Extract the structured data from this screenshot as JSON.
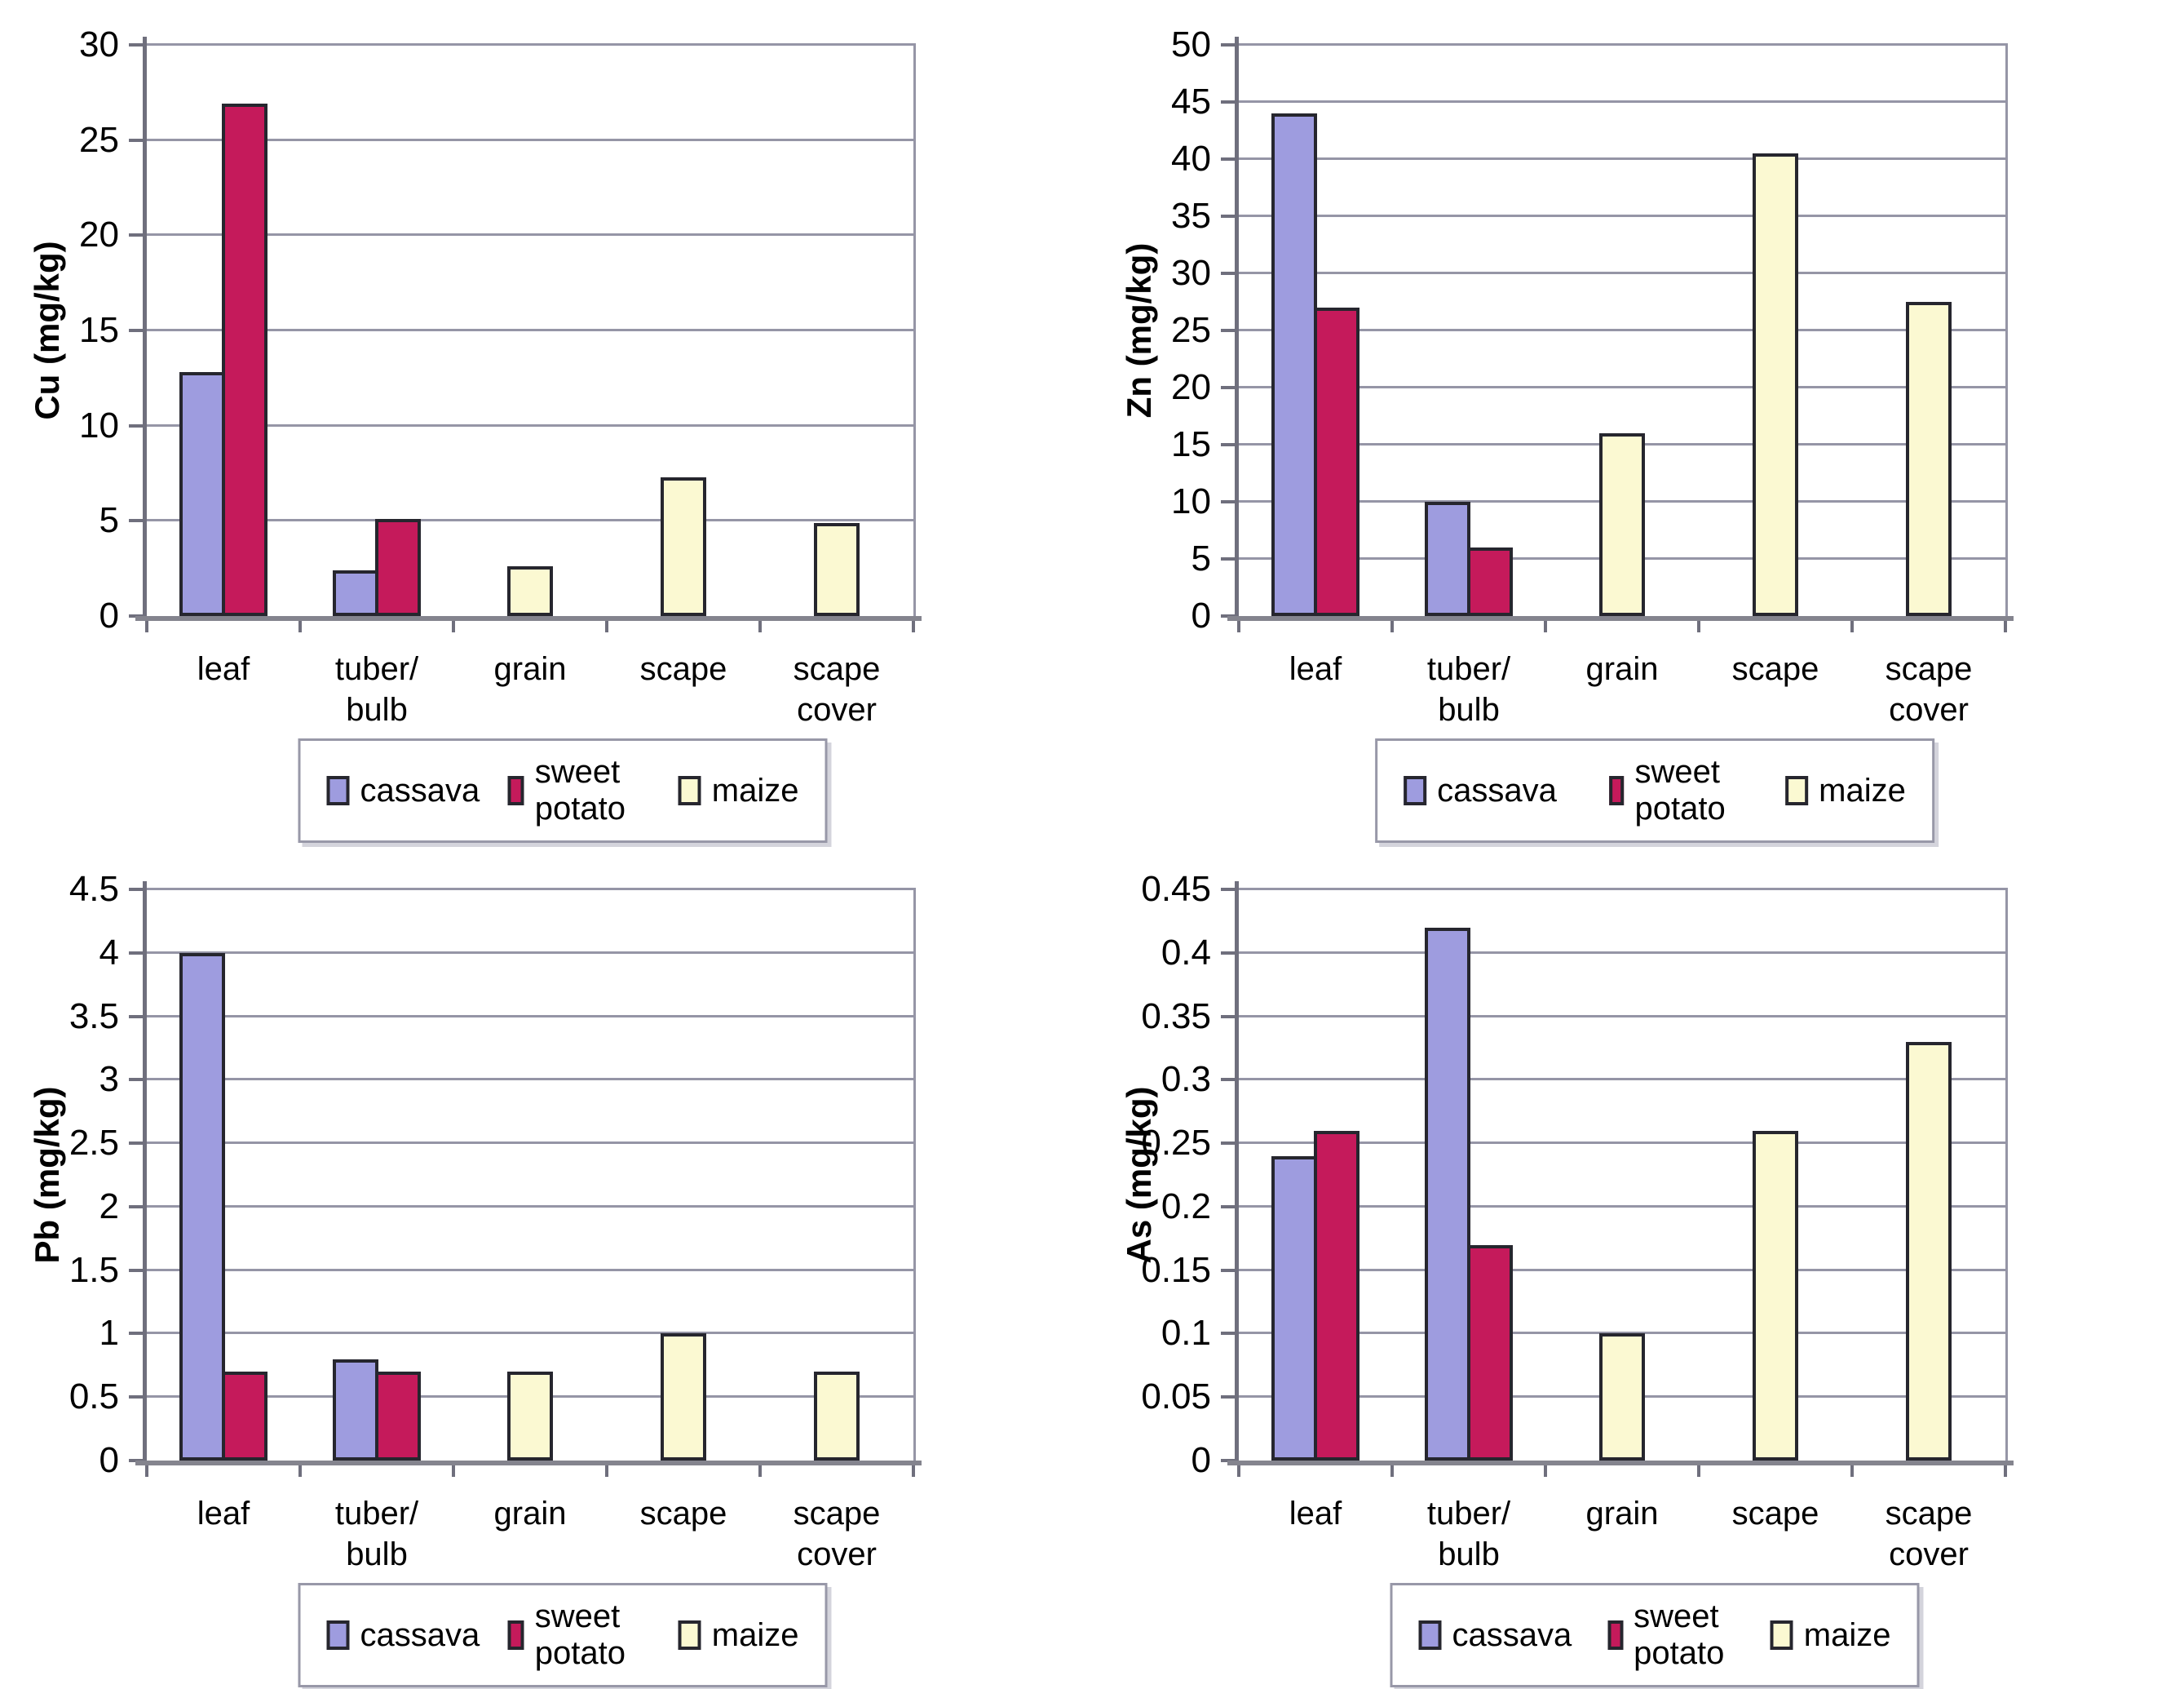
{
  "figure": {
    "background": "#ffffff",
    "series_colors": {
      "cassava": "#9e9cdf",
      "sweet potato": "#c51a5b",
      "maize": "#fbf9d2"
    },
    "bar_border_color": "#26262e",
    "gridline_color": "#9595a6",
    "axis_color": "#6f6f7d",
    "text_color": "#000000"
  },
  "chart_data": [
    {
      "type": "bar",
      "title": "",
      "xlabel": "",
      "ylabel": "Cu (mg/kg)",
      "categories": [
        "leaf",
        "tuber/\nbulb",
        "grain",
        "scape",
        "scape\ncover"
      ],
      "ylim": [
        0,
        30
      ],
      "yticks": [
        "0",
        "5",
        "10",
        "15",
        "20",
        "25",
        "30"
      ],
      "grid": true,
      "legend_position": "bottom",
      "legend_gap": 34,
      "series": [
        {
          "name": "cassava",
          "values": [
            12.8,
            2.4,
            null,
            null,
            null
          ]
        },
        {
          "name": "sweet potato",
          "values": [
            26.9,
            5.1,
            null,
            null,
            null
          ]
        },
        {
          "name": "maize",
          "values": [
            null,
            null,
            2.6,
            7.3,
            4.9
          ]
        }
      ]
    },
    {
      "type": "bar",
      "title": "",
      "xlabel": "",
      "ylabel": "Zn (mg/kg)",
      "categories": [
        "leaf",
        "tuber/\nbulb",
        "grain",
        "scape",
        "scape\ncover"
      ],
      "ylim": [
        0,
        50
      ],
      "yticks": [
        "0",
        "5",
        "10",
        "15",
        "20",
        "25",
        "30",
        "35",
        "40",
        "45",
        "50"
      ],
      "grid": true,
      "legend_position": "bottom",
      "legend_gap": 64,
      "series": [
        {
          "name": "cassava",
          "values": [
            44,
            10,
            null,
            null,
            null
          ]
        },
        {
          "name": "sweet potato",
          "values": [
            27,
            6,
            null,
            null,
            null
          ]
        },
        {
          "name": "maize",
          "values": [
            null,
            null,
            16,
            40.5,
            27.5
          ]
        }
      ]
    },
    {
      "type": "bar",
      "title": "",
      "xlabel": "",
      "ylabel": "Pb (mg/kg)",
      "categories": [
        "leaf",
        "tuber/\nbulb",
        "grain",
        "scape",
        "scape\ncover"
      ],
      "ylim": [
        0,
        4.5
      ],
      "yticks": [
        "0",
        "0.5",
        "1",
        "1.5",
        "2",
        "2.5",
        "3",
        "3.5",
        "4",
        "4.5"
      ],
      "grid": true,
      "legend_position": "bottom",
      "legend_gap": 34,
      "series": [
        {
          "name": "cassava",
          "values": [
            4.0,
            0.8,
            null,
            null,
            null
          ]
        },
        {
          "name": "sweet potato",
          "values": [
            0.7,
            0.7,
            null,
            null,
            null
          ]
        },
        {
          "name": "maize",
          "values": [
            null,
            null,
            0.7,
            1.0,
            0.7
          ]
        }
      ]
    },
    {
      "type": "bar",
      "title": "",
      "xlabel": "",
      "ylabel": "As (mg/kg)",
      "categories": [
        "leaf",
        "tuber/\nbulb",
        "grain",
        "scape",
        "scape\ncover"
      ],
      "ylim": [
        0,
        0.45
      ],
      "yticks": [
        "0",
        "0.05",
        "0.1",
        "0.15",
        "0.2",
        "0.25",
        "0.3",
        "0.35",
        "0.4",
        "0.45"
      ],
      "grid": true,
      "legend_position": "bottom",
      "legend_gap": 44,
      "series": [
        {
          "name": "cassava",
          "values": [
            0.24,
            0.42,
            null,
            null,
            null
          ]
        },
        {
          "name": "sweet potato",
          "values": [
            0.26,
            0.17,
            null,
            null,
            null
          ]
        },
        {
          "name": "maize",
          "values": [
            null,
            null,
            0.1,
            0.26,
            0.33
          ]
        }
      ]
    }
  ]
}
